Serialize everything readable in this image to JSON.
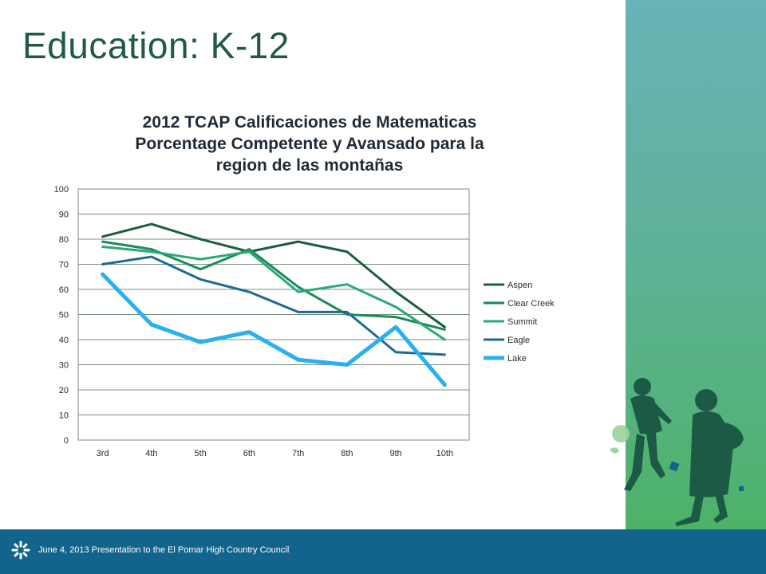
{
  "slide": {
    "title": "Education: K-12"
  },
  "footer": {
    "text": "June 4,  2013 Presentation to  the El Pomar High Country Council"
  },
  "colors": {
    "sidebar_top": "#67b3b7",
    "sidebar_bottom": "#4db268",
    "footer": "#13648c",
    "title": "#1f5a45"
  },
  "chart_data": {
    "type": "line",
    "title_lines": [
      "2012 TCAP Calificaciones de Matematicas",
      "Porcentage Competente y Avansado para la",
      "region de las montañas"
    ],
    "categories": [
      "3rd",
      "4th",
      "5th",
      "6th",
      "7th",
      "8th",
      "9th",
      "10th"
    ],
    "ylim": [
      0,
      100
    ],
    "yticks": [
      "0",
      "10",
      "20",
      "30",
      "40",
      "50",
      "60",
      "70",
      "80",
      "90",
      "100"
    ],
    "grid": true,
    "legend_position": "right",
    "series": [
      {
        "name": "Aspen",
        "color": "#1b5e3b",
        "values": [
          81,
          86,
          80,
          75,
          79,
          75,
          59,
          45
        ]
      },
      {
        "name": "Clear Creek",
        "color": "#1e8a5a",
        "values": [
          79,
          76,
          68,
          76,
          61,
          50,
          49,
          44
        ]
      },
      {
        "name": "Summit",
        "color": "#2aa876",
        "values": [
          77,
          75,
          72,
          75,
          59,
          62,
          53,
          40
        ]
      },
      {
        "name": "Eagle",
        "color": "#1a6b94",
        "values": [
          70,
          73,
          64,
          59,
          51,
          51,
          35,
          34
        ]
      },
      {
        "name": "Lake",
        "color": "#29b0f0",
        "values": [
          66,
          46,
          39,
          43,
          32,
          30,
          45,
          22
        ]
      }
    ]
  }
}
